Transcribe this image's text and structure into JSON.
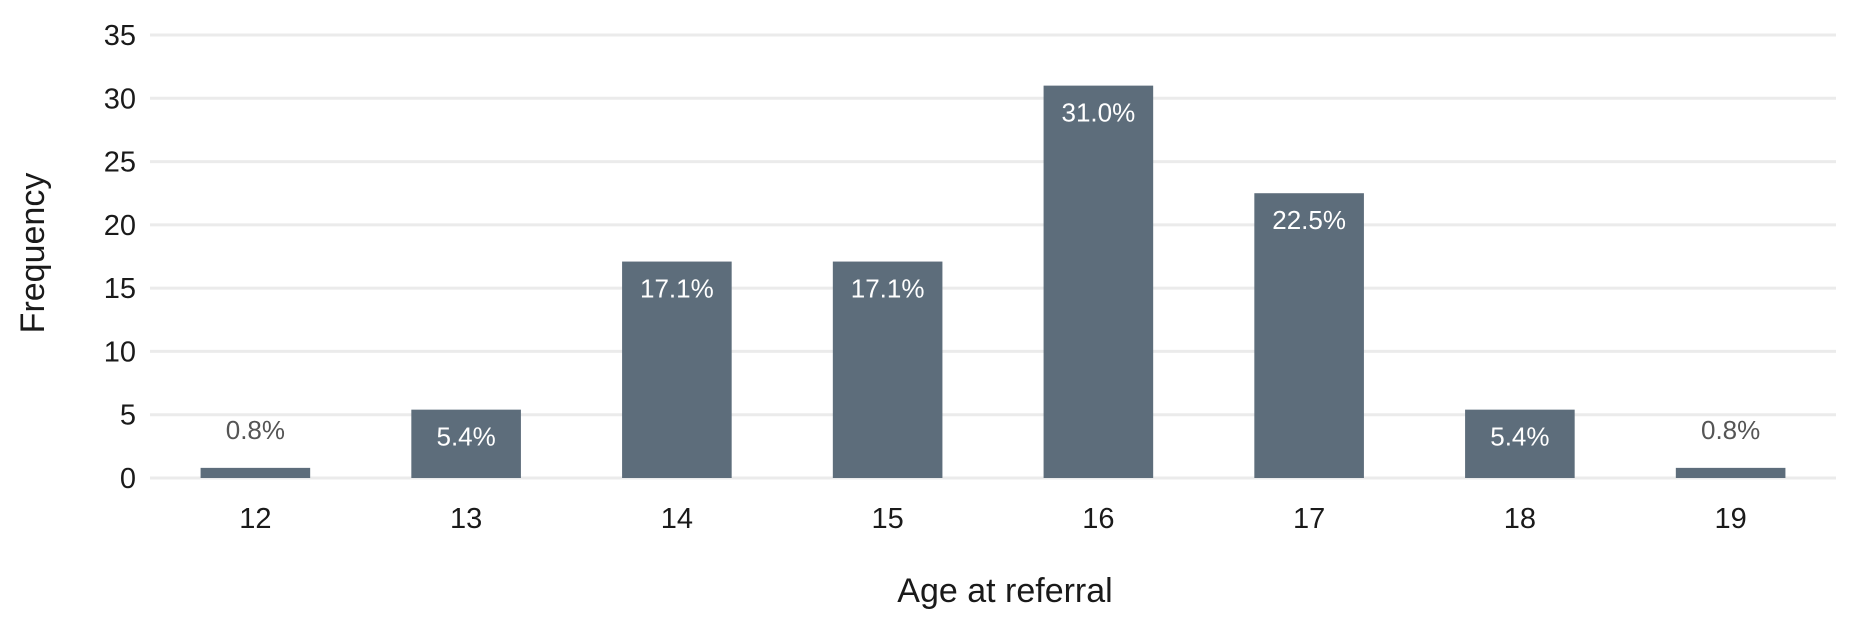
{
  "chart_data": {
    "type": "bar",
    "categories": [
      "12",
      "13",
      "14",
      "15",
      "16",
      "17",
      "18",
      "19"
    ],
    "values": [
      0.8,
      5.4,
      17.1,
      17.1,
      31.0,
      22.5,
      5.4,
      0.8
    ],
    "data_labels": [
      "0.8%",
      "5.4%",
      "17.1%",
      "17.1%",
      "31.0%",
      "22.5%",
      "5.4%",
      "0.8%"
    ],
    "title": "",
    "xlabel": "Age at referral",
    "ylabel": "Frequency",
    "ylim": [
      0,
      35
    ],
    "yticks": [
      "0",
      "5",
      "10",
      "15",
      "20",
      "25",
      "30",
      "35"
    ],
    "grid": true,
    "legend": "none",
    "colors": {
      "bar": "#5d6d7b",
      "label_inside": "#ffffff",
      "label_outside": "#555555",
      "grid": "#ebebeb"
    }
  }
}
